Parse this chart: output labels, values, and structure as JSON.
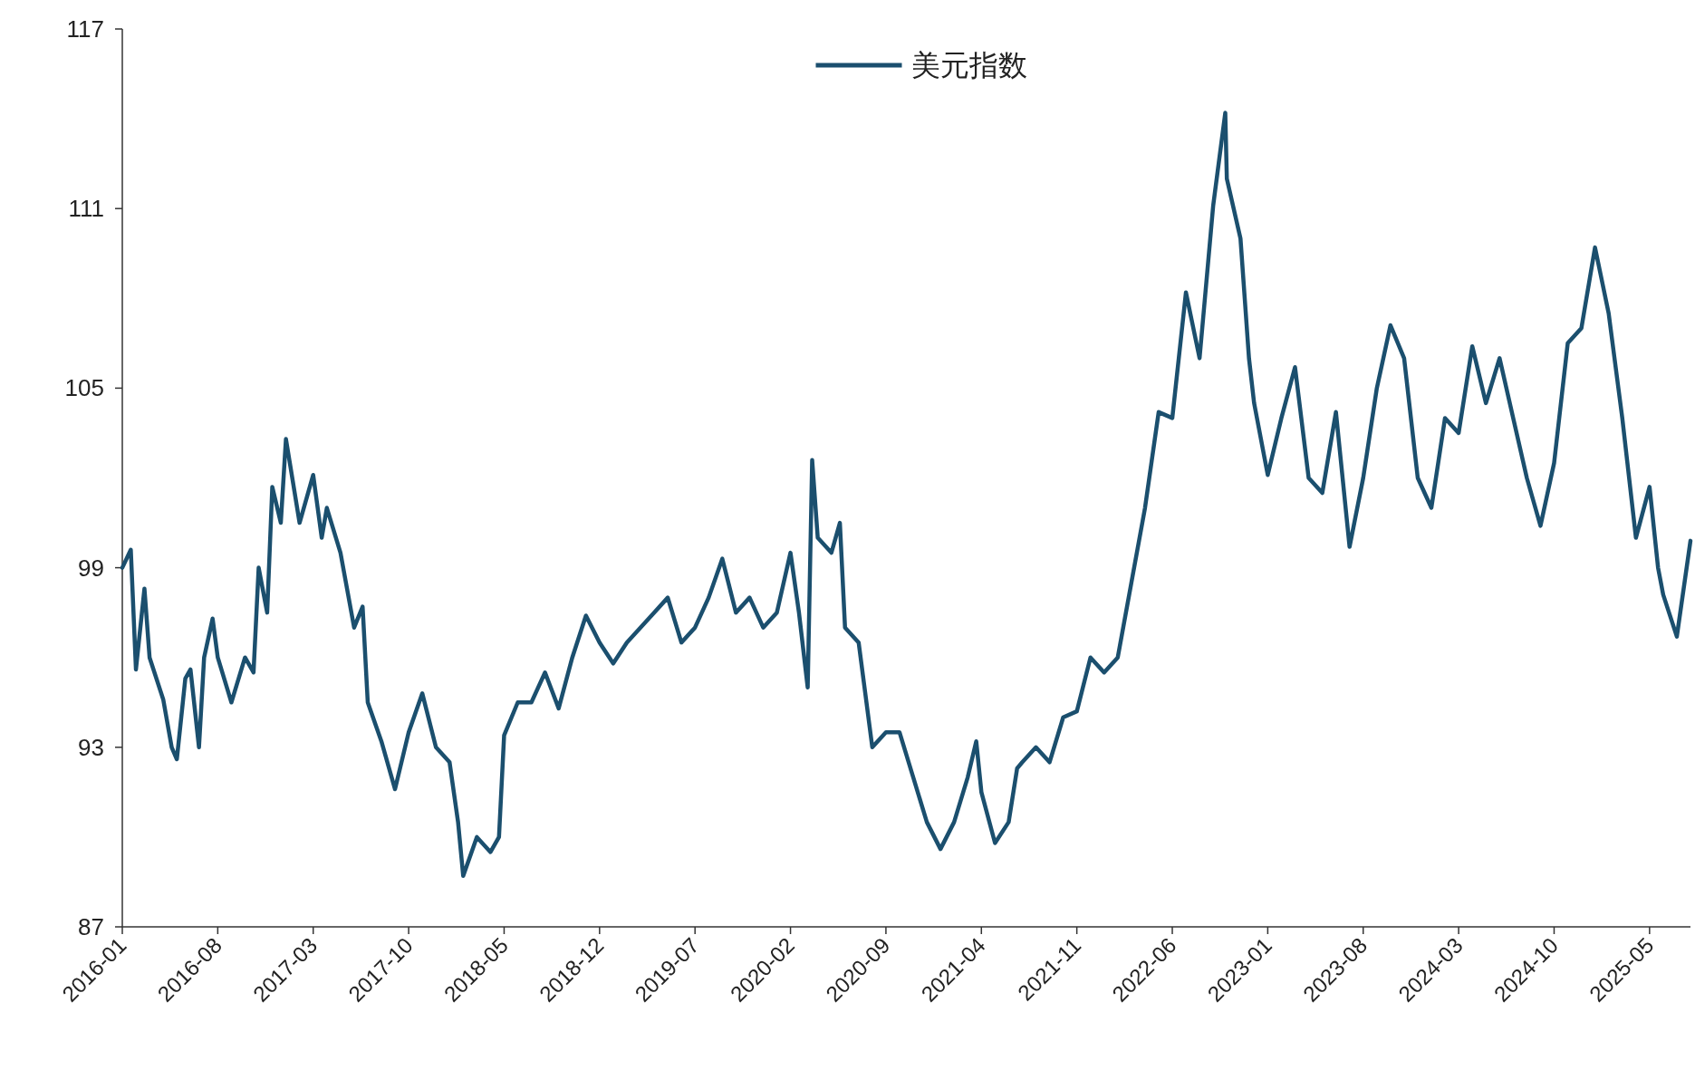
{
  "chart_data": {
    "type": "line",
    "legend": "top",
    "grid": false,
    "xlim": [
      "2016-01",
      "2025-08"
    ],
    "ylim": [
      87,
      117
    ],
    "xticks": [
      "2016-01",
      "2016-08",
      "2017-03",
      "2017-10",
      "2018-05",
      "2018-12",
      "2019-07",
      "2020-02",
      "2020-09",
      "2021-04",
      "2021-11",
      "2022-06",
      "2023-01",
      "2023-08",
      "2024-03",
      "2024-10",
      "2025-05"
    ],
    "yticks": [
      87,
      93,
      99,
      105,
      111,
      117
    ],
    "x": [
      "2016-01",
      "2016-01-20",
      "2016-02",
      "2016-02-20",
      "2016-03",
      "2016-04",
      "2016-04-20",
      "2016-05",
      "2016-05-20",
      "2016-06",
      "2016-06-20",
      "2016-07",
      "2016-07-20",
      "2016-08",
      "2016-09",
      "2016-10",
      "2016-10-20",
      "2016-11",
      "2016-11-20",
      "2016-12",
      "2016-12-20",
      "2017-01",
      "2017-02",
      "2017-03",
      "2017-03-20",
      "2017-04",
      "2017-05",
      "2017-06",
      "2017-06-20",
      "2017-07",
      "2017-08",
      "2017-09",
      "2017-10",
      "2017-11",
      "2017-12",
      "2018-01",
      "2018-01-20",
      "2018-02",
      "2018-03",
      "2018-04",
      "2018-04-20",
      "2018-05",
      "2018-06",
      "2018-07",
      "2018-08",
      "2018-09",
      "2018-10",
      "2018-11",
      "2018-12",
      "2019-01",
      "2019-02",
      "2019-03",
      "2019-04",
      "2019-05",
      "2019-06",
      "2019-07",
      "2019-08",
      "2019-09",
      "2019-10",
      "2019-11",
      "2019-12",
      "2020-01",
      "2020-02",
      "2020-02-20",
      "2020-03-09",
      "2020-03-19",
      "2020-04",
      "2020-05",
      "2020-05-20",
      "2020-06",
      "2020-07",
      "2020-08",
      "2020-09",
      "2020-10",
      "2020-11",
      "2020-12",
      "2021-01",
      "2021-02",
      "2021-03",
      "2021-03-20",
      "2021-04",
      "2021-05",
      "2021-06",
      "2021-06-20",
      "2021-07",
      "2021-08",
      "2021-09",
      "2021-10",
      "2021-11",
      "2021-12",
      "2022-01",
      "2022-02",
      "2022-03",
      "2022-04",
      "2022-05",
      "2022-06",
      "2022-07",
      "2022-08",
      "2022-09",
      "2022-09-28",
      "2022-10",
      "2022-11",
      "2022-11-20",
      "2022-12",
      "2023-01",
      "2023-02",
      "2023-03",
      "2023-04",
      "2023-05",
      "2023-06",
      "2023-07",
      "2023-08",
      "2023-09",
      "2023-10",
      "2023-11",
      "2023-12",
      "2024-01",
      "2024-02",
      "2024-03",
      "2024-04",
      "2024-05",
      "2024-06",
      "2024-07",
      "2024-08",
      "2024-09",
      "2024-10",
      "2024-11",
      "2024-12",
      "2025-01",
      "2025-02",
      "2025-03",
      "2025-04",
      "2025-05",
      "2025-05-20",
      "2025-06",
      "2025-07",
      "2025-08"
    ],
    "series": [
      {
        "name": "美元指数",
        "color": "#1b4f6e",
        "values": [
          99.0,
          99.6,
          95.6,
          98.3,
          96.0,
          94.6,
          93.0,
          92.6,
          95.3,
          95.6,
          93.0,
          96.0,
          97.3,
          96.0,
          94.5,
          96.0,
          95.5,
          99.0,
          97.5,
          101.7,
          100.5,
          103.3,
          100.5,
          102.1,
          100.0,
          101.0,
          99.5,
          97.0,
          97.7,
          94.5,
          93.2,
          91.6,
          93.5,
          94.8,
          93.0,
          92.5,
          90.5,
          88.7,
          90.0,
          89.5,
          90.0,
          93.4,
          94.5,
          94.5,
          95.5,
          94.3,
          96.0,
          97.4,
          96.5,
          95.8,
          96.5,
          97.0,
          97.5,
          98.0,
          96.5,
          97.0,
          98.0,
          99.3,
          97.5,
          98.0,
          97.0,
          97.5,
          99.5,
          97.5,
          95.0,
          102.6,
          100.0,
          99.5,
          100.5,
          97.0,
          96.5,
          93.0,
          93.5,
          93.5,
          92.0,
          90.5,
          89.6,
          90.5,
          92.0,
          93.2,
          91.5,
          89.8,
          90.5,
          92.3,
          92.5,
          93.0,
          92.5,
          94.0,
          94.2,
          96.0,
          95.5,
          96.0,
          98.5,
          101.0,
          104.2,
          104.0,
          108.2,
          106.0,
          111.1,
          114.2,
          112.0,
          110.0,
          106.0,
          104.5,
          102.1,
          104.0,
          105.7,
          102.0,
          101.5,
          104.2,
          99.7,
          102.0,
          105.0,
          107.1,
          106.0,
          102.0,
          101.0,
          104.0,
          103.5,
          106.4,
          104.5,
          106.0,
          104.0,
          102.0,
          100.4,
          102.5,
          106.5,
          107.0,
          109.7,
          107.5,
          104.0,
          100.0,
          101.7,
          99.0,
          98.1,
          96.7,
          99.9
        ]
      }
    ]
  }
}
